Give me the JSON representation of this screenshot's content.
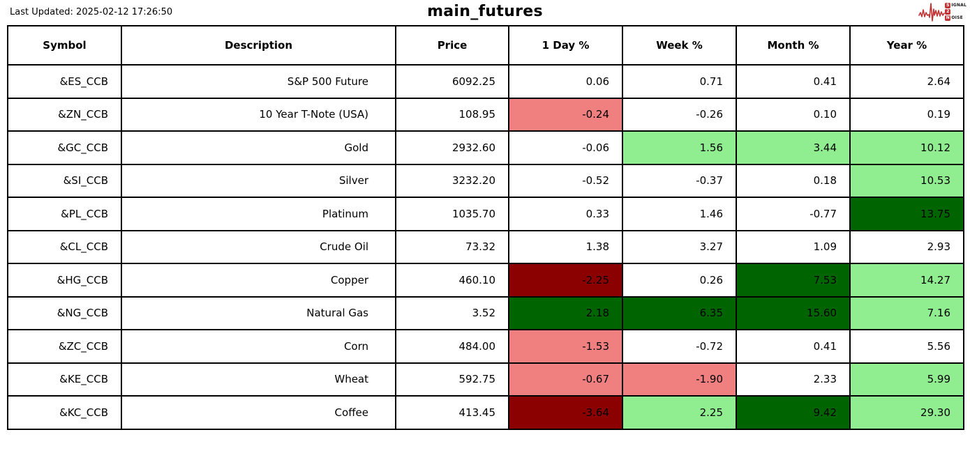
{
  "header": {
    "last_updated": "Last Updated: 2025-02-12 17:26:50",
    "title": "main_futures",
    "logo": {
      "word1_initial": "S",
      "word1_rest": "IGNAL",
      "word2": "2",
      "word3_initial": "N",
      "word3_rest": "OISE",
      "accent_color": "#bf3434"
    }
  },
  "chart_data": {
    "type": "table",
    "title": "main_futures",
    "columns": [
      "Symbol",
      "Description",
      "Price",
      "1 Day %",
      "Week %",
      "Month %",
      "Year %"
    ],
    "rows": [
      {
        "symbol": "&ES_CCB",
        "description": "S&P 500 Future",
        "price": "6092.25",
        "pcts": [
          "0.06",
          "0.71",
          "0.41",
          "2.64"
        ],
        "pct_colors": [
          "none",
          "none",
          "none",
          "none"
        ]
      },
      {
        "symbol": "&ZN_CCB",
        "description": "10 Year T-Note (USA)",
        "price": "108.95",
        "pcts": [
          "-0.24",
          "-0.26",
          "0.10",
          "0.19"
        ],
        "pct_colors": [
          "light_red",
          "none",
          "none",
          "none"
        ]
      },
      {
        "symbol": "&GC_CCB",
        "description": "Gold",
        "price": "2932.60",
        "pcts": [
          "-0.06",
          "1.56",
          "3.44",
          "10.12"
        ],
        "pct_colors": [
          "none",
          "light_green",
          "light_green",
          "light_green"
        ]
      },
      {
        "symbol": "&SI_CCB",
        "description": "Silver",
        "price": "3232.20",
        "pcts": [
          "-0.52",
          "-0.37",
          "0.18",
          "10.53"
        ],
        "pct_colors": [
          "none",
          "none",
          "none",
          "light_green"
        ]
      },
      {
        "symbol": "&PL_CCB",
        "description": "Platinum",
        "price": "1035.70",
        "pcts": [
          "0.33",
          "1.46",
          "-0.77",
          "13.75"
        ],
        "pct_colors": [
          "none",
          "none",
          "none",
          "dark_green"
        ]
      },
      {
        "symbol": "&CL_CCB",
        "description": "Crude Oil",
        "price": "73.32",
        "pcts": [
          "1.38",
          "3.27",
          "1.09",
          "2.93"
        ],
        "pct_colors": [
          "none",
          "none",
          "none",
          "none"
        ]
      },
      {
        "symbol": "&HG_CCB",
        "description": "Copper",
        "price": "460.10",
        "pcts": [
          "-2.25",
          "0.26",
          "7.53",
          "14.27"
        ],
        "pct_colors": [
          "dark_red",
          "none",
          "dark_green",
          "light_green"
        ]
      },
      {
        "symbol": "&NG_CCB",
        "description": "Natural Gas",
        "price": "3.52",
        "pcts": [
          "2.18",
          "6.35",
          "15.60",
          "7.16"
        ],
        "pct_colors": [
          "dark_green",
          "dark_green",
          "dark_green",
          "light_green"
        ]
      },
      {
        "symbol": "&ZC_CCB",
        "description": "Corn",
        "price": "484.00",
        "pcts": [
          "-1.53",
          "-0.72",
          "0.41",
          "5.56"
        ],
        "pct_colors": [
          "light_red",
          "none",
          "none",
          "none"
        ]
      },
      {
        "symbol": "&KE_CCB",
        "description": "Wheat",
        "price": "592.75",
        "pcts": [
          "-0.67",
          "-1.90",
          "2.33",
          "5.99"
        ],
        "pct_colors": [
          "light_red",
          "light_red",
          "none",
          "light_green"
        ]
      },
      {
        "symbol": "&KC_CCB",
        "description": "Coffee",
        "price": "413.45",
        "pcts": [
          "-3.64",
          "2.25",
          "9.42",
          "29.30"
        ],
        "pct_colors": [
          "dark_red",
          "light_green",
          "dark_green",
          "light_green"
        ]
      }
    ],
    "color_legend": {
      "none": "#ffffff",
      "light_red": "#F08080",
      "dark_red": "#8B0000",
      "light_green": "#90EE90",
      "dark_green": "#006400"
    },
    "layout": {
      "grid": "full-borders",
      "value_alignment": "right",
      "header_alignment": "center"
    }
  }
}
